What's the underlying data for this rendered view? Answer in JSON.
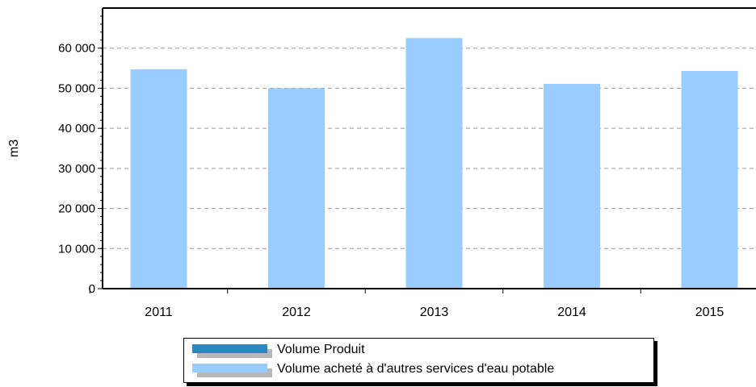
{
  "chart_data": {
    "type": "bar",
    "categories": [
      "2011",
      "2012",
      "2013",
      "2014",
      "2015"
    ],
    "series": [
      {
        "name": "Volume Produit",
        "color": "#2e86c1",
        "values": [
          0,
          0,
          0,
          0,
          0
        ]
      },
      {
        "name": "Volume acheté à d'autres services d'eau potable",
        "color": "#99ccff",
        "values": [
          54700,
          50000,
          62500,
          51100,
          54300
        ]
      }
    ],
    "title": "",
    "xlabel": "",
    "ylabel": "m3",
    "ylim": [
      0,
      70000
    ],
    "yticks": [
      0,
      10000,
      20000,
      30000,
      40000,
      50000,
      60000
    ],
    "ytick_labels": [
      "0",
      "10 000",
      "20 000",
      "30 000",
      "40 000",
      "50 000",
      "60 000"
    ],
    "grid": true,
    "legend_position": "bottom"
  }
}
